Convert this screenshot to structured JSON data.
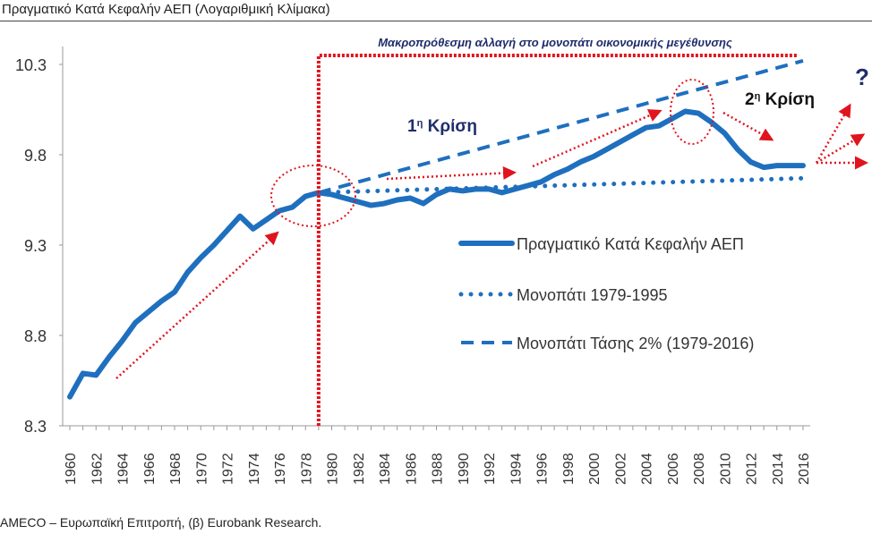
{
  "title": "Πραγματικό Κατά Κεφαλήν ΑΕΠ (Λογαριθμική Κλίμακα)",
  "footer": "AMECO – Ευρωπαϊκή Επιτροπή, (β) Eurobank Research.",
  "annotations": {
    "banner": "Μακροπρόθεσμη αλλαγή στο μονοπάτι οικονομικής μεγέθυνσης",
    "crisis1_num": "1",
    "crisis1_sup": "η",
    "crisis1_word": "Κρίση",
    "crisis2_num": "2",
    "crisis2_sup": "η",
    "crisis2_word": "Κρίση",
    "question": "?",
    "break_year": 1979
  },
  "colors": {
    "series": "#1f6fbf",
    "annotation": "#e0141e",
    "navy": "#1f2d6b"
  },
  "chart_data": {
    "type": "line",
    "title": "Πραγματικό Κατά Κεφαλήν ΑΕΠ (Λογαριθμική Κλίμακα)",
    "xlabel": "",
    "ylabel": "",
    "ylim": [
      8.3,
      10.3
    ],
    "xlim": [
      1960,
      2016
    ],
    "yticks": [
      "8.3",
      "8.8",
      "9.3",
      "9.8",
      "10.3"
    ],
    "xticks": [
      "1960",
      "1962",
      "1964",
      "1966",
      "1968",
      "1970",
      "1972",
      "1974",
      "1976",
      "1978",
      "1980",
      "1982",
      "1984",
      "1986",
      "1988",
      "1990",
      "1992",
      "1994",
      "1996",
      "1998",
      "2000",
      "2002",
      "2004",
      "2006",
      "2008",
      "2010",
      "2012",
      "2014",
      "2016"
    ],
    "grid": false,
    "legend_position": "center-right",
    "series": [
      {
        "name": "Πραγματικό Κατά Κεφαλήν ΑΕΠ",
        "style": "solid",
        "x": [
          1960,
          1961,
          1962,
          1963,
          1964,
          1965,
          1966,
          1967,
          1968,
          1969,
          1970,
          1971,
          1972,
          1973,
          1974,
          1975,
          1976,
          1977,
          1978,
          1979,
          1980,
          1981,
          1982,
          1983,
          1984,
          1985,
          1986,
          1987,
          1988,
          1989,
          1990,
          1991,
          1992,
          1993,
          1994,
          1995,
          1996,
          1997,
          1998,
          1999,
          2000,
          2001,
          2002,
          2003,
          2004,
          2005,
          2006,
          2007,
          2008,
          2009,
          2010,
          2011,
          2012,
          2013,
          2014,
          2015,
          2016
        ],
        "values": [
          8.46,
          8.59,
          8.58,
          8.68,
          8.77,
          8.87,
          8.93,
          8.99,
          9.04,
          9.15,
          9.23,
          9.3,
          9.38,
          9.46,
          9.39,
          9.44,
          9.49,
          9.51,
          9.57,
          9.59,
          9.58,
          9.56,
          9.54,
          9.52,
          9.53,
          9.55,
          9.56,
          9.53,
          9.58,
          9.61,
          9.6,
          9.61,
          9.61,
          9.59,
          9.61,
          9.63,
          9.65,
          9.69,
          9.72,
          9.76,
          9.79,
          9.83,
          9.87,
          9.91,
          9.95,
          9.96,
          10.0,
          10.04,
          10.03,
          9.98,
          9.92,
          9.83,
          9.76,
          9.73,
          9.74,
          9.74,
          9.74
        ]
      },
      {
        "name": "Μονοπάτι 1979-1995",
        "style": "dotted",
        "x": [
          1979,
          2016
        ],
        "values": [
          9.59,
          9.67
        ]
      },
      {
        "name": "Μονοπάτι Τάσης 2% (1979-2016)",
        "style": "dashed",
        "x": [
          1979,
          2016
        ],
        "values": [
          9.59,
          10.32
        ]
      }
    ]
  }
}
